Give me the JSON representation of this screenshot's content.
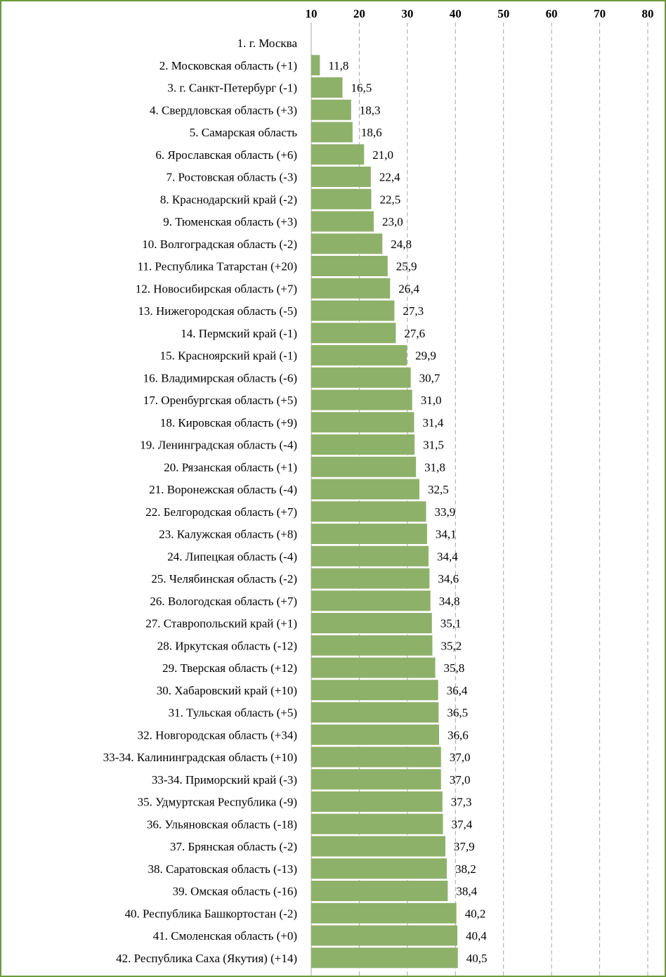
{
  "chart_data": {
    "type": "bar",
    "orientation": "horizontal",
    "title": "",
    "xlabel": "",
    "ylabel": "",
    "xlim": [
      10,
      80
    ],
    "x_ticks": [
      10,
      20,
      30,
      40,
      50,
      60,
      70,
      80
    ],
    "x_axis_position": "top",
    "grid": true,
    "bar_color": "#8eb16a",
    "categories": [
      "1. г. Москва",
      "2. Московская область (+1)",
      "3. г. Санкт-Петербург (-1)",
      "4. Свердловская область (+3)",
      "5. Самарская область",
      "6. Ярославская область (+6)",
      "7. Ростовская область (-3)",
      "8. Краснодарский край (-2)",
      "9. Тюменская область (+3)",
      "10. Волгоградская область (-2)",
      "11. Республика Татарстан (+20)",
      "12. Новосибирская область (+7)",
      "13. Нижегородская область (-5)",
      "14. Пермский край (-1)",
      "15. Красноярский край (-1)",
      "16. Владимирская область (-6)",
      "17. Оренбургская область (+5)",
      "18. Кировская область (+9)",
      "19. Ленинградская область (-4)",
      "20. Рязанская область (+1)",
      "21. Воронежская область (-4)",
      "22. Белгородская область (+7)",
      "23. Калужская область (+8)",
      "24. Липецкая область (-4)",
      "25. Челябинская область (-2)",
      "26. Вологодская область (+7)",
      "27. Ставропольский край (+1)",
      "28. Иркутская область (-12)",
      "29. Тверская область (+12)",
      "30. Хабаровский край (+10)",
      "31. Тульская область (+5)",
      "32. Новгородская область (+34)",
      "33-34. Калининградская область (+10)",
      "33-34. Приморский край (-3)",
      "35. Удмуртская Республика (-9)",
      "36. Ульяновская область (-18)",
      "37. Брянская область (-2)",
      "38. Саратовская область (-13)",
      "39. Омская область (-16)",
      "40. Республика Башкортостан (-2)",
      "41. Смоленская область (+0)",
      "42. Республика Саха (Якутия) (+14)"
    ],
    "values": [
      10.0,
      11.8,
      16.5,
      18.3,
      18.6,
      21.0,
      22.4,
      22.5,
      23.0,
      24.8,
      25.9,
      26.4,
      27.3,
      27.6,
      29.9,
      30.7,
      31.0,
      31.4,
      31.5,
      31.8,
      32.5,
      33.9,
      34.1,
      34.4,
      34.6,
      34.8,
      35.1,
      35.2,
      35.8,
      36.4,
      36.5,
      36.6,
      37.0,
      37.0,
      37.3,
      37.4,
      37.9,
      38.2,
      38.4,
      40.2,
      40.4,
      40.5
    ],
    "value_labels": [
      "",
      "11,8",
      "16,5",
      "18,3",
      "18,6",
      "21,0",
      "22,4",
      "22,5",
      "23,0",
      "24,8",
      "25,9",
      "26,4",
      "27,3",
      "27,6",
      "29,9",
      "30,7",
      "31,0",
      "31,4",
      "31,5",
      "31,8",
      "32,5",
      "33,9",
      "34,1",
      "34,4",
      "34,6",
      "34,8",
      "35,1",
      "35,2",
      "35,8",
      "36,4",
      "36,5",
      "36,6",
      "37,0",
      "37,0",
      "37,3",
      "37,4",
      "37,9",
      "38,2",
      "38,4",
      "40,2",
      "40,4",
      "40,5"
    ]
  }
}
